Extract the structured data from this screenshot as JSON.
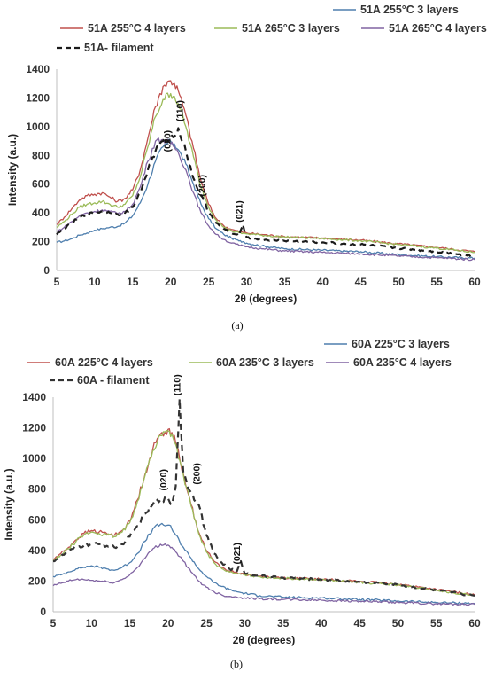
{
  "chart_data": [
    {
      "type": "line",
      "panel_caption": "(a)",
      "xlabel": "2θ (degrees)",
      "ylabel": "Intensity (a.u.)",
      "xlim": [
        5,
        60
      ],
      "ylim": [
        0,
        1400
      ],
      "xticks": [
        "5",
        "10",
        "15",
        "20",
        "25",
        "30",
        "35",
        "40",
        "45",
        "50",
        "55",
        "60"
      ],
      "yticks": [
        "0",
        "200",
        "400",
        "600",
        "800",
        "1000",
        "1200",
        "1400"
      ],
      "grid": false,
      "legend_position": "top",
      "x": [
        5,
        6,
        7,
        8,
        9,
        10,
        11,
        12,
        13,
        14,
        15,
        16,
        17,
        18,
        19,
        20,
        20.5,
        21,
        22,
        23,
        24,
        25,
        26,
        27,
        28,
        29,
        29.5,
        30,
        32,
        35,
        40,
        45,
        50,
        55,
        60
      ],
      "series": [
        {
          "name": "51A 255°C 3 layers",
          "color": "#4f7fae",
          "style": "solid",
          "values": [
            195,
            205,
            220,
            245,
            260,
            280,
            290,
            300,
            305,
            330,
            380,
            470,
            600,
            760,
            860,
            900,
            880,
            840,
            740,
            600,
            460,
            360,
            290,
            250,
            225,
            205,
            200,
            190,
            170,
            150,
            140,
            130,
            110,
            95,
            85
          ]
        },
        {
          "name": "51A 255°C 4 layers",
          "color": "#c0504d",
          "style": "solid",
          "values": [
            320,
            370,
            430,
            490,
            520,
            530,
            540,
            510,
            480,
            500,
            560,
            700,
            920,
            1140,
            1280,
            1320,
            1300,
            1250,
            1080,
            850,
            620,
            460,
            360,
            310,
            285,
            270,
            265,
            260,
            250,
            235,
            225,
            210,
            185,
            160,
            130
          ]
        },
        {
          "name": "51A 265°C 3 layers",
          "color": "#9bbb59",
          "style": "solid",
          "values": [
            300,
            340,
            390,
            440,
            460,
            470,
            480,
            460,
            440,
            460,
            520,
            650,
            860,
            1070,
            1190,
            1230,
            1210,
            1160,
            1000,
            790,
            580,
            440,
            350,
            300,
            275,
            262,
            258,
            255,
            245,
            232,
            222,
            206,
            180,
            155,
            125
          ]
        },
        {
          "name": "51A 265°C 4 layers",
          "color": "#8064a2",
          "style": "solid",
          "values": [
            270,
            300,
            340,
            380,
            400,
            410,
            420,
            410,
            395,
            410,
            460,
            580,
            760,
            900,
            910,
            880,
            860,
            820,
            700,
            540,
            400,
            310,
            250,
            215,
            190,
            175,
            170,
            165,
            150,
            135,
            125,
            115,
            100,
            88,
            75
          ]
        },
        {
          "name": "51A- filament",
          "color": "#1a1a1a",
          "style": "dashed",
          "values": [
            250,
            290,
            330,
            370,
            390,
            400,
            410,
            400,
            390,
            400,
            440,
            540,
            700,
            830,
            900,
            920,
            930,
            990,
            830,
            640,
            520,
            410,
            330,
            290,
            260,
            240,
            320,
            230,
            215,
            205,
            195,
            180,
            155,
            130,
            100
          ]
        }
      ],
      "annotations": [
        {
          "text": "(020)",
          "x": 20,
          "y": 900
        },
        {
          "text": "(110)",
          "x": 21.6,
          "y": 1110
        },
        {
          "text": "(200)",
          "x": 24.5,
          "y": 590
        },
        {
          "text": "(021)",
          "x": 29.4,
          "y": 410
        }
      ]
    },
    {
      "type": "line",
      "panel_caption": "(b)",
      "xlabel": "2θ (degrees)",
      "ylabel": "Intensity (a.u.)",
      "xlim": [
        5,
        60
      ],
      "ylim": [
        0,
        1400
      ],
      "xticks": [
        "5",
        "10",
        "15",
        "20",
        "25",
        "30",
        "35",
        "40",
        "45",
        "50",
        "55",
        "60"
      ],
      "yticks": [
        "0",
        "200",
        "400",
        "600",
        "800",
        "1000",
        "1200",
        "1400"
      ],
      "grid": false,
      "legend_position": "top",
      "x": [
        5,
        6,
        7,
        8,
        9,
        10,
        11,
        12,
        13,
        14,
        15,
        16,
        17,
        18,
        19,
        20,
        20.5,
        21,
        21.5,
        22,
        23,
        24,
        25,
        26,
        27,
        28,
        29,
        29.5,
        30,
        32,
        35,
        40,
        45,
        50,
        55,
        60
      ],
      "series": [
        {
          "name": "60A 225°C 3 layers",
          "color": "#4f7fae",
          "style": "solid",
          "values": [
            230,
            240,
            260,
            280,
            290,
            300,
            290,
            280,
            270,
            290,
            320,
            380,
            460,
            540,
            570,
            565,
            540,
            500,
            460,
            420,
            350,
            280,
            230,
            190,
            165,
            145,
            130,
            125,
            120,
            105,
            95,
            90,
            80,
            70,
            60,
            55
          ]
        },
        {
          "name": "60A 225°C 4 layers",
          "color": "#c0504d",
          "style": "solid",
          "values": [
            340,
            380,
            420,
            470,
            510,
            530,
            520,
            510,
            500,
            530,
            590,
            730,
            900,
            1060,
            1160,
            1190,
            1170,
            1100,
            1000,
            900,
            700,
            520,
            400,
            330,
            290,
            265,
            255,
            250,
            245,
            232,
            222,
            212,
            198,
            180,
            145,
            110
          ]
        },
        {
          "name": "60A 235°C 3 layers",
          "color": "#9bbb59",
          "style": "solid",
          "values": [
            330,
            370,
            410,
            460,
            500,
            520,
            510,
            500,
            490,
            520,
            580,
            720,
            890,
            1050,
            1150,
            1180,
            1160,
            1090,
            990,
            890,
            690,
            510,
            390,
            320,
            282,
            258,
            248,
            244,
            240,
            228,
            218,
            208,
            192,
            175,
            140,
            105
          ]
        },
        {
          "name": "60A 235°C 4 layers",
          "color": "#8064a2",
          "style": "solid",
          "values": [
            170,
            185,
            200,
            210,
            210,
            205,
            200,
            195,
            190,
            210,
            240,
            290,
            350,
            410,
            440,
            435,
            420,
            390,
            360,
            330,
            260,
            200,
            160,
            130,
            110,
            100,
            95,
            93,
            90,
            85,
            80,
            75,
            68,
            60,
            52,
            48
          ]
        },
        {
          "name": "60A - filament",
          "color": "#333333",
          "style": "dashed",
          "values": [
            330,
            360,
            390,
            420,
            430,
            440,
            440,
            430,
            420,
            440,
            490,
            560,
            640,
            700,
            730,
            740,
            700,
            820,
            1390,
            900,
            780,
            700,
            500,
            380,
            320,
            280,
            265,
            330,
            250,
            235,
            222,
            210,
            195,
            175,
            140,
            105
          ]
        }
      ],
      "annotations": [
        {
          "text": "(110)",
          "x": 21.6,
          "y": 1480
        },
        {
          "text": "(020)",
          "x": 19.8,
          "y": 860
        },
        {
          "text": "(200)",
          "x": 24.1,
          "y": 900
        },
        {
          "text": "(021)",
          "x": 29.4,
          "y": 380
        }
      ]
    }
  ]
}
